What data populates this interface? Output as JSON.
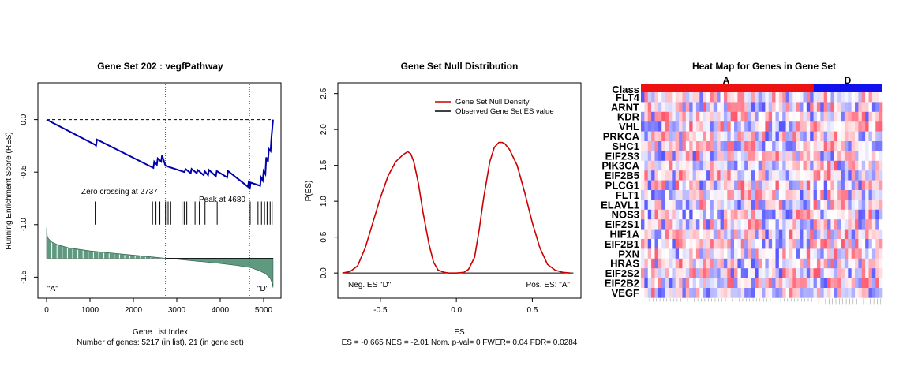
{
  "panel1": {
    "title": "Gene Set  202 : vegfPathway",
    "xlabel": "Gene List Index",
    "subtitle": "Number of genes: 5217 (in list), 21 (in gene set)",
    "ylabel": "Running Enrichment Score (RES)",
    "zero_crossing_label": "Zero crossing at 2737",
    "peak_label": "Peak at 4680",
    "left_class_label": "\"A\"",
    "right_class_label": "\"D\""
  },
  "panel2": {
    "title": "Gene Set Null Distribution",
    "xlabel": "ES",
    "ylabel": "P(ES)",
    "stats": "ES = -0.665  NES = -2.01 Nom. p-val= 0 FWER= 0.04 FDR= 0.0284",
    "legend_null": "Gene Set Null Density",
    "legend_obs": "Observed Gene Set ES value",
    "neg_label": "Neg. ES \"D\"",
    "pos_label": "Pos. ES: \"A\""
  },
  "panel3": {
    "title": "Heat Map for Genes in Gene Set",
    "class_label": "Class",
    "class_a": "A",
    "class_d": "D",
    "genes": [
      "FLT4",
      "ARNT",
      "KDR",
      "VHL",
      "PRKCA",
      "SHC1",
      "EIF2S3",
      "PIK3CA",
      "EIF2B5",
      "PLCG1",
      "FLT1",
      "ELAVL1",
      "NOS3",
      "EIF2S1",
      "HIF1A",
      "EIF2B1",
      "PXN",
      "HRAS",
      "EIF2S2",
      "EIF2B2",
      "VEGF"
    ]
  },
  "colors": {
    "running_es": "#0000aa",
    "null_density": "#cc0000",
    "observed_es": "#000000",
    "rank_fill": "#5f9a80",
    "class_a": "#ee1111",
    "class_d": "#1111ee",
    "zero_cross_line": "#00aa00",
    "peak_line": "#6666cc"
  },
  "chart_data": [
    {
      "type": "line",
      "name": "enrichment-plot",
      "xlim": [
        -200,
        5400
      ],
      "ylim": [
        -1.7,
        0.35
      ],
      "xticks": [
        0,
        1000,
        2000,
        3000,
        4000,
        5000
      ],
      "xtick_labels": [
        "0",
        "1000",
        "2000",
        "3000",
        "4000",
        "5000"
      ],
      "yticks": [
        0.0,
        -0.5,
        -1.0,
        -1.5
      ],
      "ytick_labels": [
        "0.0",
        "-0.5",
        "-1.0",
        "-1.5"
      ],
      "zero_crossing": 2737,
      "peak": 4680,
      "running_es": {
        "x": [
          0,
          1120,
          1140,
          1160,
          2460,
          2480,
          2540,
          2560,
          2640,
          2660,
          2740,
          3180,
          3200,
          3320,
          3340,
          3460,
          3480,
          3620,
          3640,
          3720,
          3740,
          3900,
          3920,
          4160,
          4180,
          4640,
          4660,
          4680,
          4700,
          4920,
          4940,
          4980,
          5000,
          5040,
          5060,
          5100,
          5120,
          5160,
          5180,
          5217
        ],
        "y": [
          0.0,
          -0.24,
          -0.25,
          -0.19,
          -0.46,
          -0.4,
          -0.43,
          -0.37,
          -0.4,
          -0.34,
          -0.44,
          -0.5,
          -0.47,
          -0.51,
          -0.47,
          -0.51,
          -0.48,
          -0.53,
          -0.49,
          -0.53,
          -0.48,
          -0.54,
          -0.49,
          -0.55,
          -0.49,
          -0.64,
          -0.58,
          -0.665,
          -0.6,
          -0.63,
          -0.55,
          -0.58,
          -0.49,
          -0.52,
          -0.36,
          -0.4,
          -0.28,
          -0.3,
          -0.17,
          0.0
        ]
      },
      "hits": [
        1120,
        2440,
        2520,
        2610,
        2740,
        2800,
        2860,
        3120,
        3170,
        3230,
        3420,
        3520,
        3650,
        3930,
        4690,
        4870,
        4950,
        5020,
        5080,
        5150,
        5195
      ],
      "ranked_metric": {
        "x": [
          0,
          20,
          100,
          250,
          500,
          1000,
          1500,
          2000,
          2500,
          2737,
          3000,
          3500,
          4000,
          4400,
          4700,
          4900,
          5050,
          5150,
          5200,
          5217
        ],
        "y": [
          -1.03,
          -1.12,
          -1.16,
          -1.19,
          -1.22,
          -1.25,
          -1.27,
          -1.29,
          -1.31,
          -1.32,
          -1.33,
          -1.35,
          -1.37,
          -1.39,
          -1.41,
          -1.44,
          -1.47,
          -1.51,
          -1.56,
          -1.6
        ]
      },
      "ranked_baseline": -1.32
    },
    {
      "type": "line",
      "name": "null-distribution",
      "xlabel": "ES",
      "ylabel": "P(ES)",
      "xlim": [
        -0.78,
        0.82
      ],
      "ylim": [
        -0.35,
        2.65
      ],
      "xticks": [
        -0.5,
        0.0,
        0.5
      ],
      "xtick_labels": [
        "-0.5",
        "0.0",
        "0.5"
      ],
      "yticks": [
        0.0,
        0.5,
        1.0,
        1.5,
        2.0,
        2.5
      ],
      "ytick_labels": [
        "0.0",
        "0.5",
        "1.0",
        "1.5",
        "2.0",
        "2.5"
      ],
      "observed_es": -0.665,
      "series": [
        {
          "name": "Gene Set Null Density",
          "x": [
            -0.75,
            -0.7,
            -0.65,
            -0.6,
            -0.55,
            -0.5,
            -0.45,
            -0.4,
            -0.35,
            -0.32,
            -0.3,
            -0.28,
            -0.25,
            -0.22,
            -0.18,
            -0.15,
            -0.12,
            -0.08,
            -0.05,
            0.0,
            0.05,
            0.08,
            0.12,
            0.15,
            0.18,
            0.22,
            0.25,
            0.28,
            0.3,
            0.32,
            0.35,
            0.4,
            0.45,
            0.5,
            0.55,
            0.6,
            0.65,
            0.7,
            0.75
          ],
          "y": [
            0.0,
            0.02,
            0.1,
            0.35,
            0.7,
            1.05,
            1.35,
            1.55,
            1.65,
            1.69,
            1.66,
            1.55,
            1.25,
            0.85,
            0.4,
            0.15,
            0.04,
            0.01,
            0.0,
            0.0,
            0.01,
            0.05,
            0.22,
            0.6,
            1.05,
            1.55,
            1.75,
            1.82,
            1.82,
            1.8,
            1.72,
            1.5,
            1.12,
            0.7,
            0.35,
            0.12,
            0.04,
            0.01,
            0.0
          ]
        }
      ]
    },
    {
      "type": "heatmap",
      "name": "gene-set-heatmap",
      "rows": 21,
      "columns": 70,
      "class_a_columns": 50,
      "class_d_columns": 20,
      "value_range": [
        -1,
        1
      ]
    }
  ]
}
